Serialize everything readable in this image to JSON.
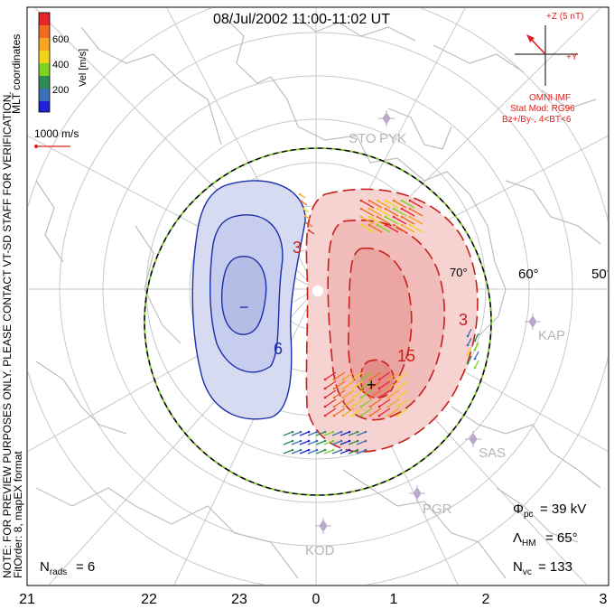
{
  "title": "08/Jul/2002 11:00-11:02 UT",
  "colorbar": {
    "label": "Vel [m/s]",
    "ticks": [
      "600",
      "400",
      "200"
    ],
    "colors": [
      "#e6262b",
      "#f26a1f",
      "#f5a623",
      "#f2d31b",
      "#7ed321",
      "#2e8b57",
      "#3b6fb6",
      "#1f1fd6"
    ]
  },
  "coordinate_system": "MLT coordinates",
  "reference_vector": "1000 m/s",
  "side_note": "NOTE: FOR PREVIEW PURPOSES ONLY. PLEASE CONTACT VT-SD STAFF FOR VERIFICATION.",
  "fit_order": "FitOrder: 8, mapEX format",
  "imf": {
    "axis_z": "+Z (5 nT)",
    "axis_y": "+Y",
    "source": "OMNI IMF",
    "stat_mod": "Stat Mod: RG96",
    "condition": "Bz+/By-, 4<BT<6",
    "color": "#e0201c"
  },
  "stations": [
    "STO",
    "PYK",
    "KAP",
    "SAS",
    "PGR",
    "KOD"
  ],
  "latitude_labels": [
    "60°",
    "50°",
    "70°"
  ],
  "contour_labels": {
    "neg": [
      "−",
      "6"
    ],
    "pos": [
      "3",
      "3",
      "15",
      "+"
    ]
  },
  "stats": {
    "phi_pc": "= 39 kV",
    "lambda_hm": "= 65°",
    "n_vc": "= 133",
    "n_rads": "= 6"
  },
  "mlt_labels": [
    "21",
    "22",
    "23",
    "0",
    "1",
    "2",
    "3"
  ],
  "colors": {
    "negative_contour": "#1a2fa8",
    "positive_contour": "#c8201a",
    "negative_fill": "#d6dbf1",
    "positive_fill": "#f6d2d0",
    "grid": "#c8c8c8",
    "coast": "#bdbdbd",
    "station": "#b9a9c9"
  }
}
